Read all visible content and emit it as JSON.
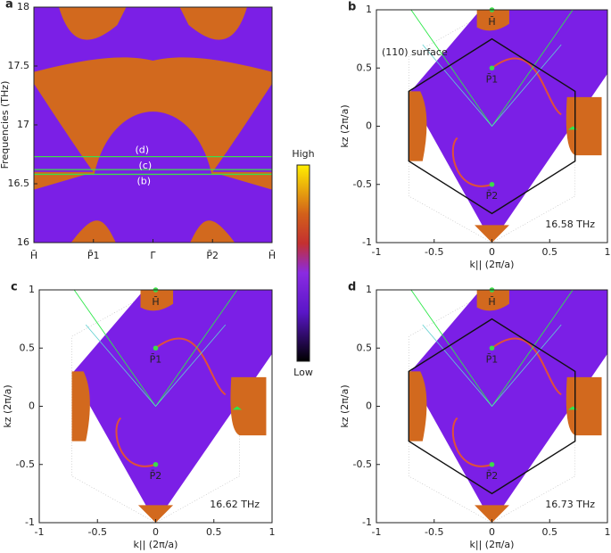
{
  "chart_data": [
    {
      "type": "band",
      "panel": "a",
      "ylabel": "Frequencies (THz)",
      "categories": [
        "H̄",
        "P̄1",
        "Γ̄",
        "P̄2",
        "H̄"
      ],
      "ylim": [
        16,
        18
      ],
      "yticks": [
        16,
        16.5,
        17,
        17.5,
        18
      ],
      "lines": [
        {
          "label": "(b)",
          "value": 16.58
        },
        {
          "label": "(c)",
          "value": 16.62
        },
        {
          "label": "(d)",
          "value": 16.73
        }
      ],
      "colorbar": {
        "high": "High",
        "low": "Low"
      }
    },
    {
      "type": "surface",
      "panel": "b",
      "xlabel": "k|| (2π/a)",
      "ylabel": "kz (2π/a)",
      "xlim": [
        -1,
        1
      ],
      "ylim": [
        -1,
        1
      ],
      "xticks": [
        -1,
        -0.5,
        0,
        0.5,
        1
      ],
      "yticks": [
        -1,
        -0.5,
        0,
        0.5,
        1
      ],
      "annotations": [
        "(110) surface",
        "16.58 THz"
      ],
      "hexagon": true,
      "points": [
        {
          "label": "H̄",
          "x": 0,
          "y": 1
        },
        {
          "label": "P̄1",
          "x": 0,
          "y": 0.5
        },
        {
          "label": "P̄2",
          "x": 0,
          "y": -0.5
        }
      ]
    },
    {
      "type": "surface",
      "panel": "c",
      "xlabel": "k|| (2π/a)",
      "ylabel": "kz (2π/a)",
      "xlim": [
        -1,
        1
      ],
      "ylim": [
        -1,
        1
      ],
      "xticks": [
        -1,
        -0.5,
        0,
        0.5,
        1
      ],
      "yticks": [
        -1,
        -0.5,
        0,
        0.5,
        1
      ],
      "annotations": [
        "16.62 THz"
      ],
      "hexagon": false,
      "points": [
        {
          "label": "H̄",
          "x": 0,
          "y": 1
        },
        {
          "label": "P̄1",
          "x": 0,
          "y": 0.5
        },
        {
          "label": "P̄2",
          "x": 0,
          "y": -0.5
        }
      ]
    },
    {
      "type": "surface",
      "panel": "d",
      "xlabel": "k|| (2π/a)",
      "ylabel": "kz (2π/a)",
      "xlim": [
        -1,
        1
      ],
      "ylim": [
        -1,
        1
      ],
      "xticks": [
        -1,
        -0.5,
        0,
        0.5,
        1
      ],
      "yticks": [
        -1,
        -0.5,
        0,
        0.5,
        1
      ],
      "annotations": [
        "16.73 THz"
      ],
      "hexagon": true,
      "points": [
        {
          "label": "H̄",
          "x": 0,
          "y": 1
        },
        {
          "label": "P̄1",
          "x": 0,
          "y": 0.5
        },
        {
          "label": "P̄2",
          "x": 0,
          "y": -0.5
        }
      ]
    }
  ]
}
